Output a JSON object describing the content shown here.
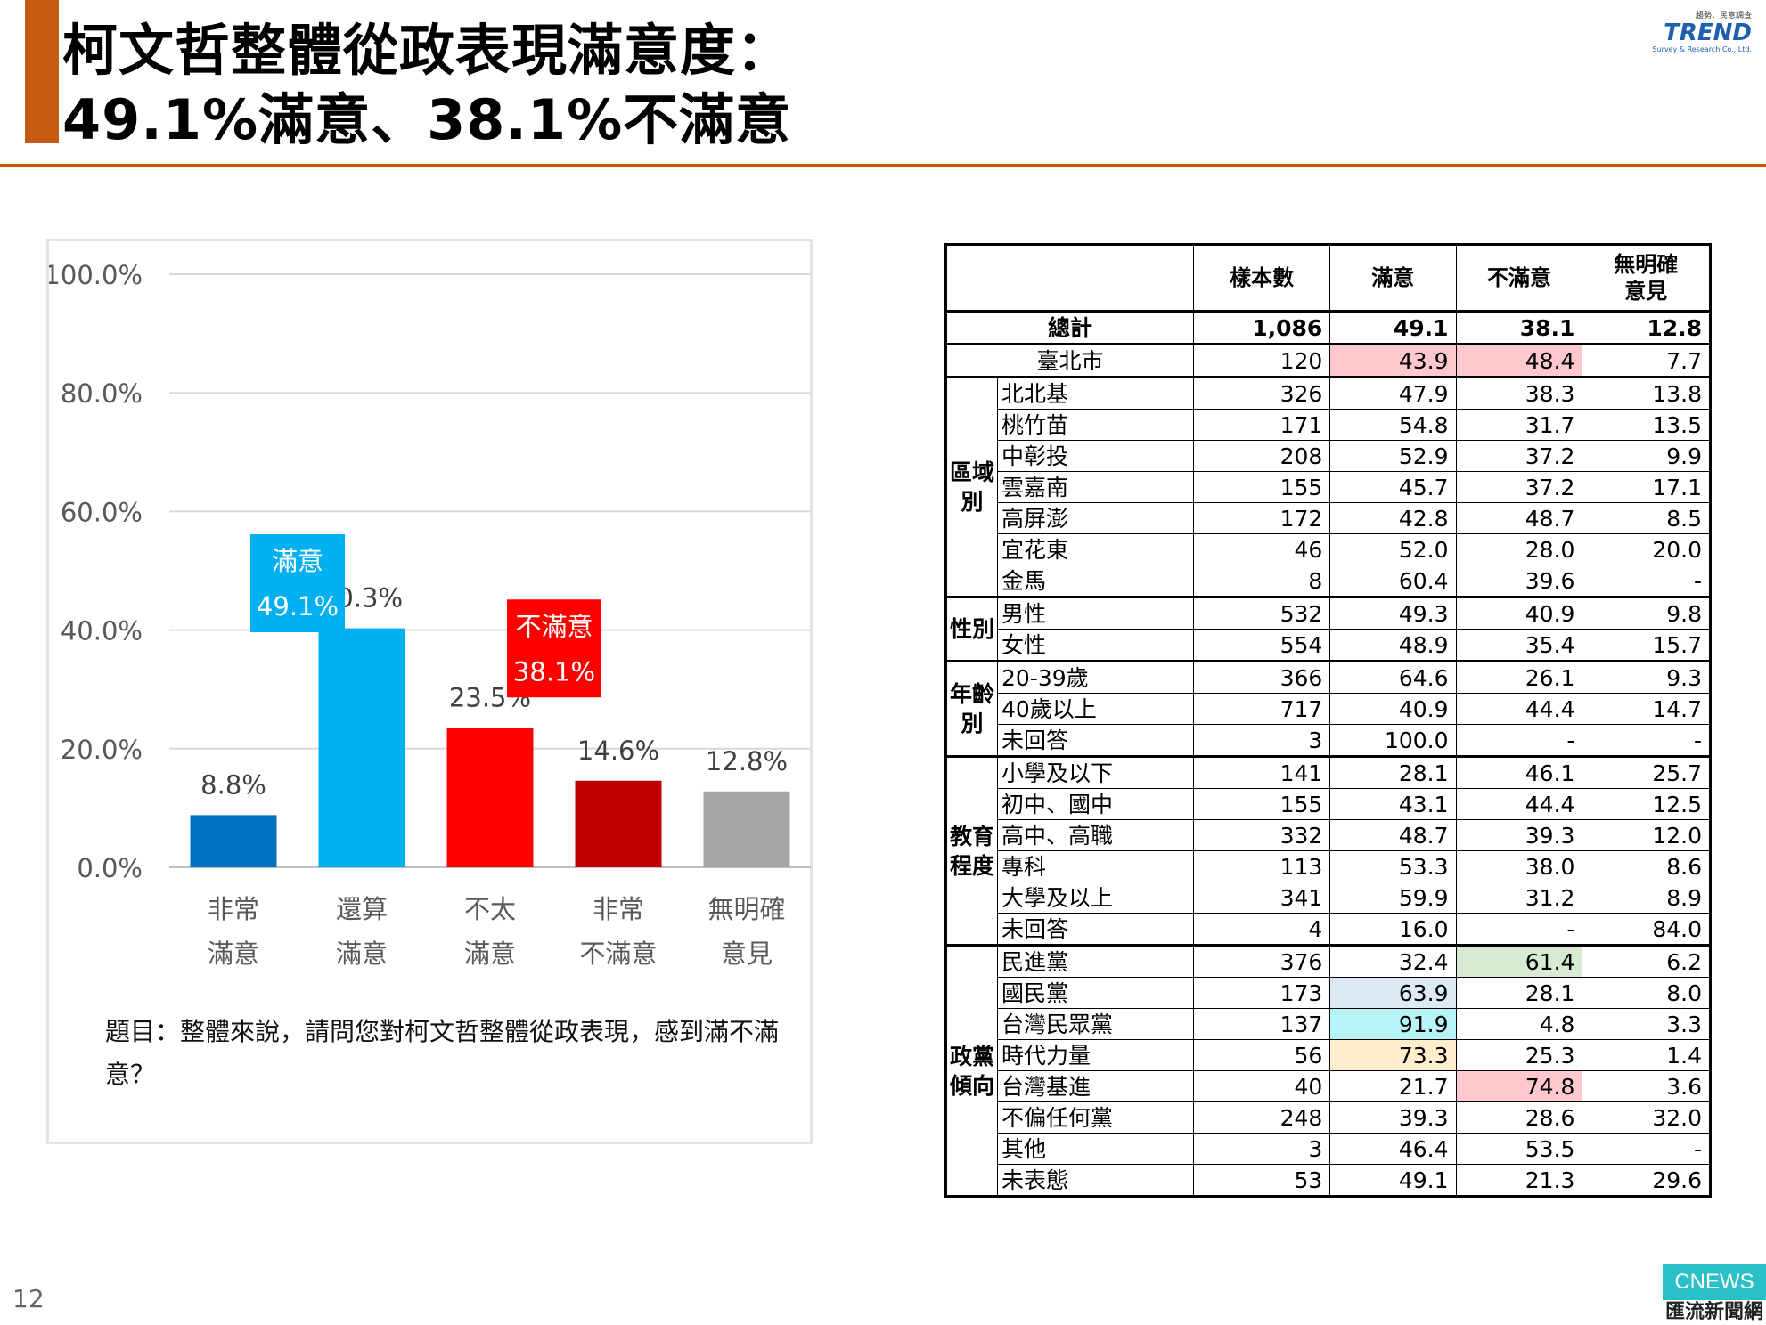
{
  "header": {
    "title_line1": "柯文哲整體從政表現滿意度：",
    "title_line2": "49.1%滿意、38.1%不滿意",
    "logo_top": "趨勢．民意調查",
    "logo_mark": "TREND",
    "logo_sub": "Survey & Research Co., Ltd."
  },
  "chart_data": {
    "type": "bar",
    "categories": [
      [
        "非常",
        "滿意"
      ],
      [
        "還算",
        "滿意"
      ],
      [
        "不太",
        "滿意"
      ],
      [
        "非常",
        "不滿意"
      ],
      [
        "無明確",
        "意見"
      ]
    ],
    "values": [
      8.8,
      40.3,
      23.5,
      14.6,
      12.8
    ],
    "value_labels": [
      "8.8%",
      "40.3%",
      "23.5%",
      "14.6%",
      "12.8%"
    ],
    "bar_colors": [
      "#0070c0",
      "#00b0f0",
      "#ff0000",
      "#c00000",
      "#a6a6a6"
    ],
    "yticks": [
      "0.0%",
      "20.0%",
      "40.0%",
      "60.0%",
      "80.0%",
      "100.0%"
    ],
    "ylim": [
      0,
      100
    ],
    "grid": true,
    "callouts": [
      {
        "label": "滿意",
        "value": "49.1%",
        "color": "#00b0f0"
      },
      {
        "label": "不滿意",
        "value": "38.1%",
        "color": "#ff0000"
      }
    ]
  },
  "question": "題目：整體來說，請問您對柯文哲整體從政表現，感到滿不滿意？",
  "table": {
    "headers": [
      "",
      "樣本數",
      "滿意",
      "不滿意",
      "無明確\n意見"
    ],
    "total": {
      "label": "總計",
      "values": [
        "1,086",
        "49.1",
        "38.1",
        "12.8"
      ]
    },
    "taipei": {
      "label": "臺北市",
      "values": [
        "120",
        "43.9",
        "48.4",
        "7.7"
      ]
    },
    "groups": [
      {
        "name": "區域別",
        "rows": [
          {
            "label": "北北基",
            "values": [
              "326",
              "47.9",
              "38.3",
              "13.8"
            ]
          },
          {
            "label": "桃竹苗",
            "values": [
              "171",
              "54.8",
              "31.7",
              "13.5"
            ]
          },
          {
            "label": "中彰投",
            "values": [
              "208",
              "52.9",
              "37.2",
              "9.9"
            ]
          },
          {
            "label": "雲嘉南",
            "values": [
              "155",
              "45.7",
              "37.2",
              "17.1"
            ]
          },
          {
            "label": "高屏澎",
            "values": [
              "172",
              "42.8",
              "48.7",
              "8.5"
            ]
          },
          {
            "label": "宜花東",
            "values": [
              "46",
              "52.0",
              "28.0",
              "20.0"
            ]
          },
          {
            "label": "金馬",
            "values": [
              "8",
              "60.4",
              "39.6",
              "-"
            ]
          }
        ]
      },
      {
        "name": "性別",
        "rows": [
          {
            "label": "男性",
            "values": [
              "532",
              "49.3",
              "40.9",
              "9.8"
            ]
          },
          {
            "label": "女性",
            "values": [
              "554",
              "48.9",
              "35.4",
              "15.7"
            ]
          }
        ]
      },
      {
        "name": "年齡別",
        "rows": [
          {
            "label": "20-39歲",
            "values": [
              "366",
              "64.6",
              "26.1",
              "9.3"
            ]
          },
          {
            "label": "40歲以上",
            "values": [
              "717",
              "40.9",
              "44.4",
              "14.7"
            ]
          },
          {
            "label": "未回答",
            "values": [
              "3",
              "100.0",
              "-",
              "-"
            ]
          }
        ]
      },
      {
        "name": "教育程度",
        "rows": [
          {
            "label": "小學及以下",
            "values": [
              "141",
              "28.1",
              "46.1",
              "25.7"
            ]
          },
          {
            "label": "初中、國中",
            "values": [
              "155",
              "43.1",
              "44.4",
              "12.5"
            ]
          },
          {
            "label": "高中、高職",
            "values": [
              "332",
              "48.7",
              "39.3",
              "12.0"
            ]
          },
          {
            "label": "專科",
            "values": [
              "113",
              "53.3",
              "38.0",
              "8.6"
            ]
          },
          {
            "label": "大學及以上",
            "values": [
              "341",
              "59.9",
              "31.2",
              "8.9"
            ]
          },
          {
            "label": "未回答",
            "values": [
              "4",
              "16.0",
              "-",
              "84.0"
            ]
          }
        ]
      },
      {
        "name": "政黨傾向",
        "rows": [
          {
            "label": "民進黨",
            "values": [
              "376",
              "32.4",
              "61.4",
              "6.2"
            ]
          },
          {
            "label": "國民黨",
            "values": [
              "173",
              "63.9",
              "28.1",
              "8.0"
            ]
          },
          {
            "label": "台灣民眾黨",
            "values": [
              "137",
              "91.9",
              "4.8",
              "3.3"
            ]
          },
          {
            "label": "時代力量",
            "values": [
              "56",
              "73.3",
              "25.3",
              "1.4"
            ]
          },
          {
            "label": "台灣基進",
            "values": [
              "40",
              "21.7",
              "74.8",
              "3.6"
            ]
          },
          {
            "label": "不偏任何黨",
            "values": [
              "248",
              "39.3",
              "28.6",
              "32.0"
            ]
          },
          {
            "label": "其他",
            "values": [
              "3",
              "46.4",
              "53.5",
              "-"
            ]
          },
          {
            "label": "未表態",
            "values": [
              "53",
              "49.1",
              "21.3",
              "29.6"
            ]
          }
        ]
      }
    ]
  },
  "footer": {
    "page_number": "12",
    "brand_top": "CNEWS",
    "brand_bottom": "匯流新聞網"
  }
}
